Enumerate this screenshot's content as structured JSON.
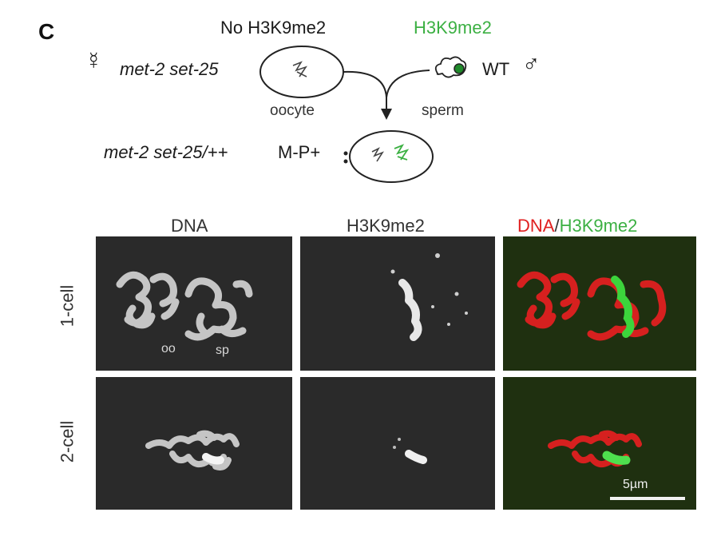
{
  "panel_letter": "C",
  "schematic": {
    "mother_genotype": "met-2 set-25",
    "no_mark_label": "No H3K9me2",
    "oocyte_label": "oocyte",
    "mark_label": "H3K9me2",
    "father_genotype": "WT",
    "sperm_label": "sperm",
    "progeny_genotype": "met-2 set-25/++",
    "progeny_label": "M-P+",
    "female_symbol": "☿",
    "male_symbol": "♂"
  },
  "columns": {
    "dna": "DNA",
    "h3k9": "H3K9me2",
    "merge_dna": "DNA",
    "merge_sep": "/",
    "merge_h3k9": "H3K9me2"
  },
  "rows": {
    "one_cell": "1-cell",
    "two_cell": "2-cell"
  },
  "insets": {
    "oocyte_nucleus": "oo",
    "sperm_nucleus": "sp"
  },
  "scale_bar_label": "5µm",
  "colors": {
    "dna_channel": "#e02020",
    "h3k9_channel": "#3cb043",
    "micrograph_bg": "#2a2a2a",
    "merge_bg": "#1f3010"
  }
}
